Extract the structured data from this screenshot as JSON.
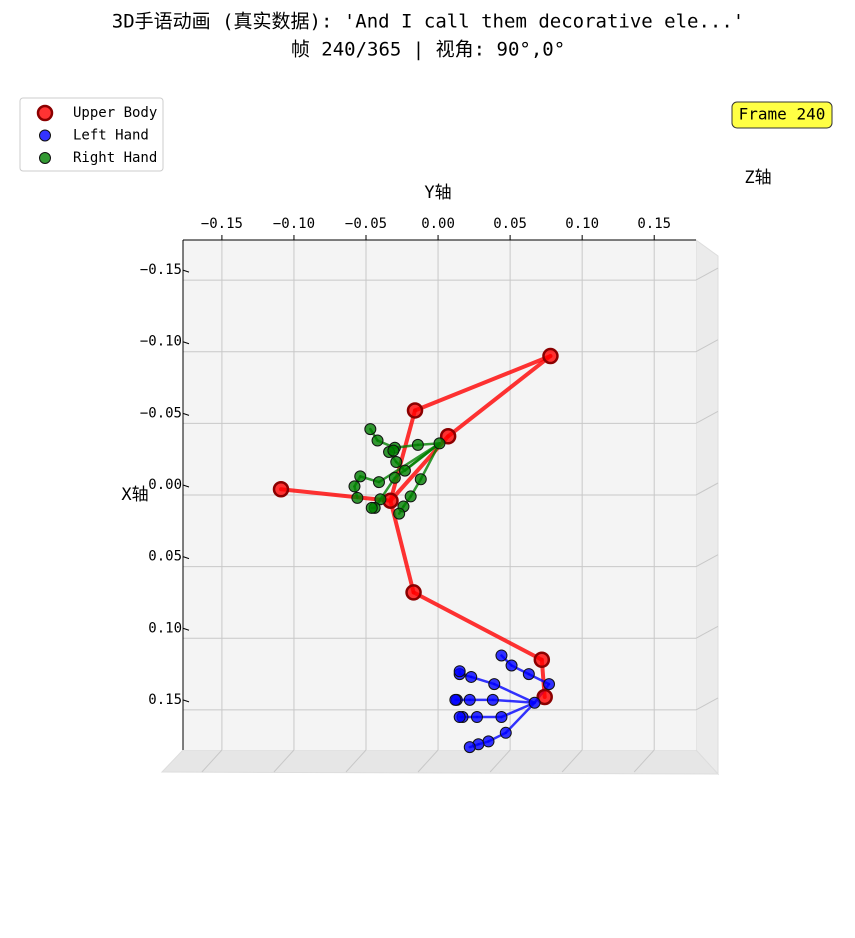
{
  "chart_data": {
    "type": "scatter",
    "title": "3D手语动画 (真实数据): 'And I call them decorative ele...'",
    "subtitle": "帧 240/365 | 视角: 90°,0°",
    "x_label": "Y轴",
    "y_label": "X轴",
    "z_label": "Z轴",
    "annotation": "Frame 240",
    "legend": "upper left",
    "grid": true,
    "xlim": [
      -0.177,
      0.179
    ],
    "ylim": [
      -0.178,
      0.178
    ],
    "xticks": [
      {
        "value": -0.15,
        "label": "−0.15"
      },
      {
        "value": -0.1,
        "label": "−0.10"
      },
      {
        "value": -0.05,
        "label": "−0.05"
      },
      {
        "value": 0,
        "label": "0.00"
      },
      0.05,
      {
        "value": 0.1,
        "label": "0.10"
      },
      0.15
    ],
    "yticks": [
      {
        "value": -0.15,
        "label": "−0.15"
      },
      {
        "value": -0.1,
        "label": "−0.10"
      },
      {
        "value": -0.05,
        "label": "−0.05"
      },
      {
        "value": 0,
        "label": "0.00"
      },
      0.05,
      {
        "value": 0.1,
        "label": "0.10"
      },
      0.15
    ],
    "series": [
      {
        "name": "Upper Body",
        "color": "#ff0000",
        "x": [
          0.078,
          -0.016,
          0.007,
          -0.109,
          -0.033,
          -0.017,
          0.072,
          0.074
        ],
        "values": [
          -0.097,
          -0.059,
          -0.041,
          -0.004,
          0.004,
          0.068,
          0.115,
          0.141
        ]
      },
      {
        "name": "Left Hand",
        "color": "#0000ff",
        "x": [
          0.067,
          0.077,
          0.063,
          0.051,
          0.044,
          0.039,
          0.023,
          0.015,
          0.015,
          0.038,
          0.022,
          0.013,
          0.012,
          0.044,
          0.027,
          0.017,
          0.015,
          0.047,
          0.035,
          0.028,
          0.022
        ],
        "values": [
          0.145,
          0.132,
          0.125,
          0.119,
          0.112,
          0.132,
          0.127,
          0.125,
          0.123,
          0.143,
          0.143,
          0.143,
          0.143,
          0.155,
          0.155,
          0.155,
          0.155,
          0.166,
          0.172,
          0.174,
          0.176
        ]
      },
      {
        "name": "Right Hand",
        "color": "#008000",
        "x": [
          0.001,
          -0.014,
          -0.03,
          -0.042,
          -0.047,
          -0.023,
          -0.029,
          -0.034,
          -0.031,
          -0.012,
          -0.019,
          -0.024,
          -0.027,
          -0.03,
          -0.04,
          -0.044,
          -0.046,
          -0.041,
          -0.054,
          -0.058,
          -0.056
        ],
        "values": [
          -0.036,
          -0.035,
          -0.033,
          -0.038,
          -0.046,
          -0.017,
          -0.023,
          -0.03,
          -0.031,
          -0.011,
          0.001,
          0.008,
          0.013,
          -0.012,
          0.003,
          0.009,
          0.009,
          -0.009,
          -0.013,
          -0.006,
          0.002
        ]
      }
    ]
  }
}
